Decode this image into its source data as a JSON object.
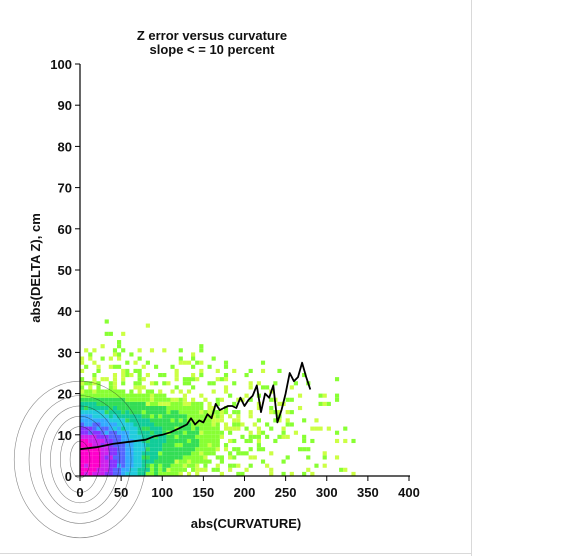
{
  "chart_data": {
    "type": "heatmap",
    "title": "Z error versus curvature",
    "subtitle": "slope < = 10 percent",
    "xlabel": "abs(CURVATURE)",
    "ylabel": "abs(DELTA Z), cm",
    "xlim": [
      0,
      400
    ],
    "ylim": [
      0,
      100
    ],
    "xticks": [
      "0",
      "50",
      "100",
      "150",
      "200",
      "250",
      "300",
      "350",
      "400"
    ],
    "yticks": [
      "0",
      "10",
      "20",
      "30",
      "40",
      "50",
      "60",
      "70",
      "80",
      "90",
      "100"
    ],
    "grid": false,
    "legend": "none",
    "colormap": [
      "#ffff44",
      "#ccff44",
      "#88ff33",
      "#33dd55",
      "#11cc99",
      "#22ccdd",
      "#33aaff",
      "#5566ff",
      "#8833ff",
      "#cc22ee",
      "#ff00cc"
    ],
    "density_note": "2D histogram with density contours; peak near curvature 0-20, dz 0-10",
    "mean_line": {
      "name": "mean",
      "x": [
        0,
        20,
        40,
        60,
        80,
        90,
        100,
        110,
        120,
        130,
        135,
        140,
        145,
        150,
        155,
        160,
        165,
        170,
        175,
        180,
        185,
        190,
        195,
        200,
        205,
        210,
        215,
        220,
        225,
        230,
        235,
        240,
        245,
        250,
        255,
        260,
        265,
        270,
        275,
        280
      ],
      "y": [
        6.5,
        7,
        7.8,
        8.3,
        8.8,
        9.6,
        10,
        10.6,
        11.5,
        12.5,
        14,
        12.5,
        13.5,
        13,
        15,
        14,
        17.5,
        16,
        16.5,
        17,
        17,
        16.5,
        19,
        17,
        18.5,
        19.5,
        22,
        15.5,
        20,
        19,
        22,
        13,
        16,
        20,
        25,
        23,
        24,
        27.5,
        24,
        21
      ]
    }
  }
}
